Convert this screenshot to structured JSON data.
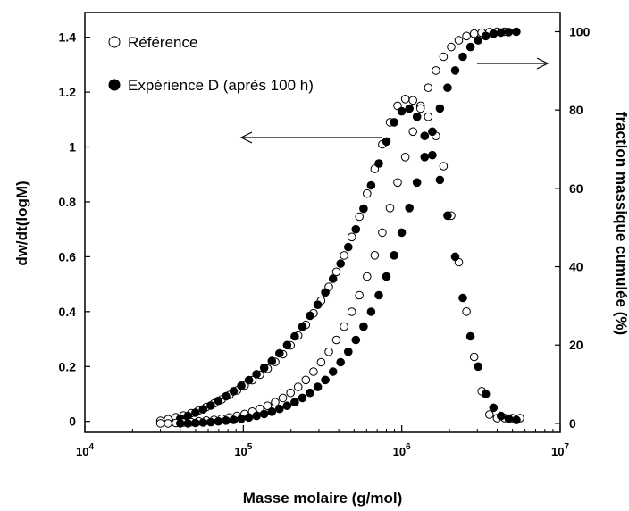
{
  "chart_data": {
    "type": "scatter",
    "xscale": "log",
    "xlim": [
      10000,
      10000000
    ],
    "ylim_left": [
      -0.04,
      1.49
    ],
    "ylim_right": [
      -2.3,
      104.9
    ],
    "left_ticks": [
      "0",
      "0.2",
      "0.4",
      "0.6",
      "0.8",
      "1",
      "1.2",
      "1.4"
    ],
    "right_ticks": [
      "0",
      "20",
      "40",
      "60",
      "80",
      "100"
    ],
    "x_ticks": [
      {
        "base": "10",
        "exp": "4"
      },
      {
        "base": "10",
        "exp": "5"
      },
      {
        "base": "10",
        "exp": "6"
      },
      {
        "base": "10",
        "exp": "7"
      }
    ],
    "xlabel": "Masse molaire (g/mol)",
    "ylabel_left": "dw/dt(logM)",
    "ylabel_right": "fraction massique cumulée (%)",
    "legend": [
      {
        "label": "Référence",
        "marker": "open-circle"
      },
      {
        "label": "Expérience D (après 100 h)",
        "marker": "filled-circle"
      }
    ],
    "legend_position": "top-left",
    "annotations": [
      {
        "type": "arrow",
        "direction": "left",
        "meaning": "distribution → left axis"
      },
      {
        "type": "arrow",
        "direction": "right",
        "meaning": "cumulative → right axis"
      }
    ],
    "series": [
      {
        "name": "Référence",
        "marker": "open-circle",
        "kind": "distribution",
        "axis": "left",
        "x": [
          30000,
          33500,
          37500,
          41900,
          46800,
          52300,
          58400,
          65300,
          73000,
          81600,
          91200,
          101900,
          113900,
          127300,
          142300,
          159000,
          177700,
          198600,
          221900,
          248000,
          277200,
          309800,
          346200,
          386900,
          432400,
          483300,
          540100,
          603600,
          674600,
          753900,
          842600,
          941700,
          1052000,
          1176000,
          1314000,
          1469000,
          1642000,
          1835000,
          2051000,
          2292000,
          2561000,
          2863000,
          3200000,
          3576000,
          3996000,
          4466000,
          4991000,
          5578000
        ],
        "y": [
          0.002,
          0.008,
          0.015,
          0.022,
          0.03,
          0.04,
          0.052,
          0.065,
          0.08,
          0.096,
          0.113,
          0.131,
          0.15,
          0.17,
          0.192,
          0.217,
          0.245,
          0.277,
          0.313,
          0.352,
          0.394,
          0.44,
          0.49,
          0.545,
          0.605,
          0.672,
          0.746,
          0.83,
          0.92,
          1.01,
          1.09,
          1.15,
          1.175,
          1.17,
          1.15,
          1.11,
          1.04,
          0.93,
          0.75,
          0.58,
          0.4,
          0.235,
          0.11,
          0.025,
          0.012,
          0.012,
          0.012,
          0.012
        ]
      },
      {
        "name": "Expérience D (après 100 h)",
        "marker": "filled-circle",
        "kind": "distribution",
        "axis": "left",
        "x": [
          40000,
          44700,
          49900,
          55800,
          62300,
          69600,
          77800,
          86900,
          97100,
          108500,
          121200,
          135500,
          151400,
          169100,
          189000,
          211200,
          236000,
          263700,
          294700,
          329300,
          368000,
          411200,
          459500,
          513400,
          573700,
          641100,
          716400,
          800600,
          894600,
          999700,
          1117000,
          1248000,
          1395000,
          1559000,
          1742000,
          1946000,
          2175000,
          2430000,
          2716000,
          3035000,
          3391000,
          3790000,
          4235000,
          4732000,
          5288000
        ],
        "y": [
          0.01,
          0.02,
          0.032,
          0.044,
          0.058,
          0.075,
          0.092,
          0.11,
          0.13,
          0.15,
          0.172,
          0.195,
          0.22,
          0.248,
          0.278,
          0.31,
          0.345,
          0.385,
          0.425,
          0.47,
          0.52,
          0.575,
          0.635,
          0.7,
          0.775,
          0.86,
          0.94,
          1.02,
          1.09,
          1.13,
          1.14,
          1.11,
          1.04,
          0.97,
          0.88,
          0.75,
          0.6,
          0.45,
          0.31,
          0.2,
          0.1,
          0.05,
          0.02,
          0.01,
          0.005
        ]
      },
      {
        "name": "Référence",
        "marker": "open-circle",
        "kind": "cumulative",
        "axis": "right",
        "x": [
          30000,
          33500,
          37500,
          41900,
          46800,
          52300,
          58400,
          65300,
          73000,
          81600,
          91200,
          101900,
          113900,
          127300,
          142300,
          159000,
          177700,
          198600,
          221900,
          248000,
          277200,
          309800,
          346200,
          386900,
          432400,
          483300,
          540100,
          603600,
          674600,
          753900,
          842600,
          941700,
          1052000,
          1176000,
          1314000,
          1469000,
          1642000,
          1835000,
          2051000,
          2292000,
          2561000,
          2863000,
          3200000,
          3576000,
          3996000,
          4466000
        ],
        "y": [
          0.0,
          0.0,
          0.1,
          0.2,
          0.3,
          0.5,
          0.7,
          0.9,
          1.2,
          1.5,
          1.9,
          2.4,
          3.0,
          3.7,
          4.5,
          5.4,
          6.5,
          7.8,
          9.3,
          11.1,
          13.2,
          15.6,
          18.3,
          21.3,
          24.7,
          28.5,
          32.7,
          37.5,
          42.9,
          48.7,
          55.0,
          61.5,
          68.0,
          74.5,
          80.4,
          85.7,
          90.1,
          93.6,
          96.1,
          97.8,
          98.9,
          99.5,
          99.8,
          99.9,
          100.0,
          100.0
        ]
      },
      {
        "name": "Expérience D (après 100 h)",
        "marker": "filled-circle",
        "kind": "cumulative",
        "axis": "right",
        "x": [
          40000,
          44700,
          49900,
          55800,
          62300,
          69600,
          77800,
          86900,
          97100,
          108500,
          121200,
          135500,
          151400,
          169100,
          189000,
          211200,
          236000,
          263700,
          294700,
          329300,
          368000,
          411200,
          459500,
          513400,
          573700,
          641100,
          716400,
          800600,
          894600,
          999700,
          1117000,
          1248000,
          1395000,
          1559000,
          1742000,
          1946000,
          2175000,
          2430000,
          2716000,
          3035000,
          3391000,
          3790000,
          4235000,
          4732000,
          5288000
        ],
        "y": [
          0.0,
          0.0,
          0.1,
          0.2,
          0.3,
          0.5,
          0.7,
          0.9,
          1.2,
          1.5,
          1.9,
          2.4,
          3.0,
          3.7,
          4.5,
          5.4,
          6.5,
          7.8,
          9.3,
          11.1,
          13.2,
          15.6,
          18.3,
          21.3,
          24.7,
          28.5,
          32.7,
          37.5,
          42.9,
          48.7,
          55.0,
          61.5,
          68.0,
          74.5,
          80.4,
          85.7,
          90.1,
          93.6,
          96.1,
          97.8,
          98.9,
          99.5,
          99.8,
          99.9,
          100.0
        ]
      }
    ]
  }
}
